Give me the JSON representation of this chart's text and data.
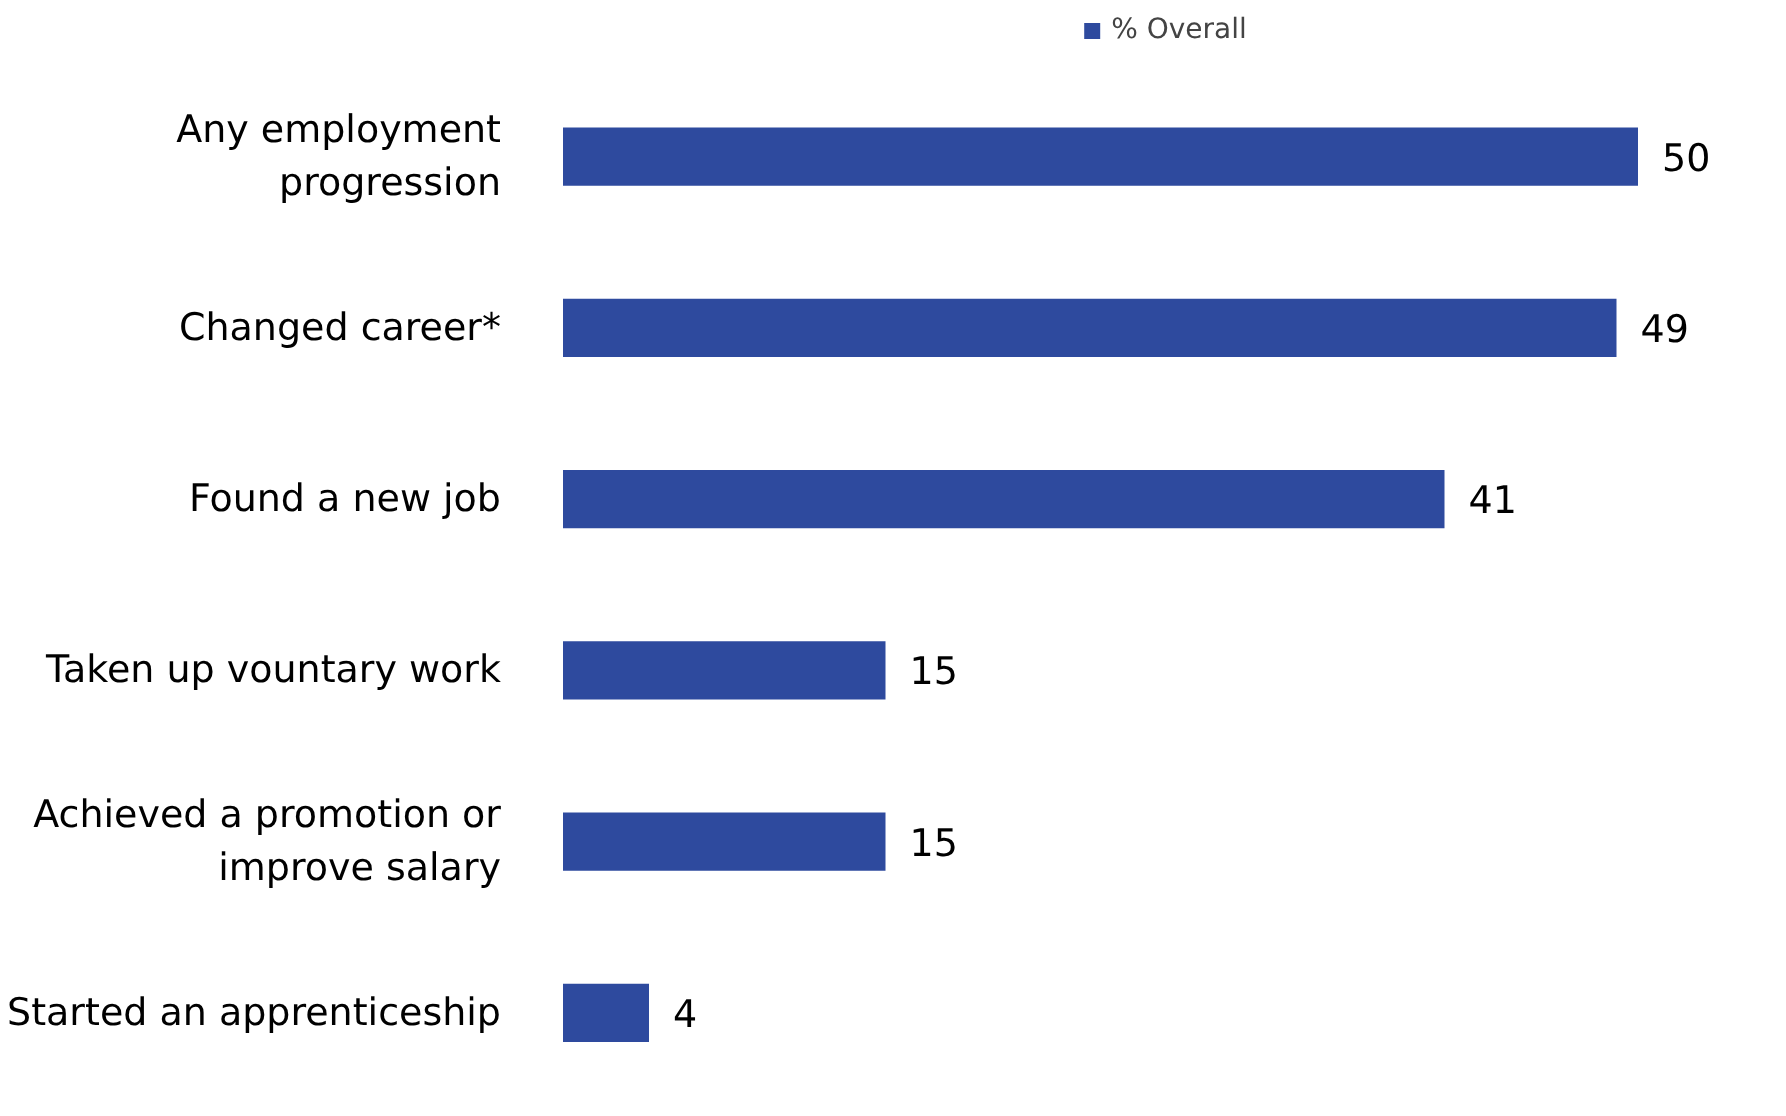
{
  "chart_data": {
    "type": "bar",
    "orientation": "horizontal",
    "categories": [
      "Any employment progression",
      "Changed career*",
      "Found a new job",
      "Taken up vountary work",
      "Achieved a promotion or improve salary",
      "Started an apprenticeship"
    ],
    "series": [
      {
        "name": "% Overall",
        "color": "#2e4a9e",
        "values": [
          50,
          49,
          41,
          15,
          15,
          4
        ]
      }
    ],
    "data_labels": true,
    "legend": "top",
    "grid": false
  }
}
